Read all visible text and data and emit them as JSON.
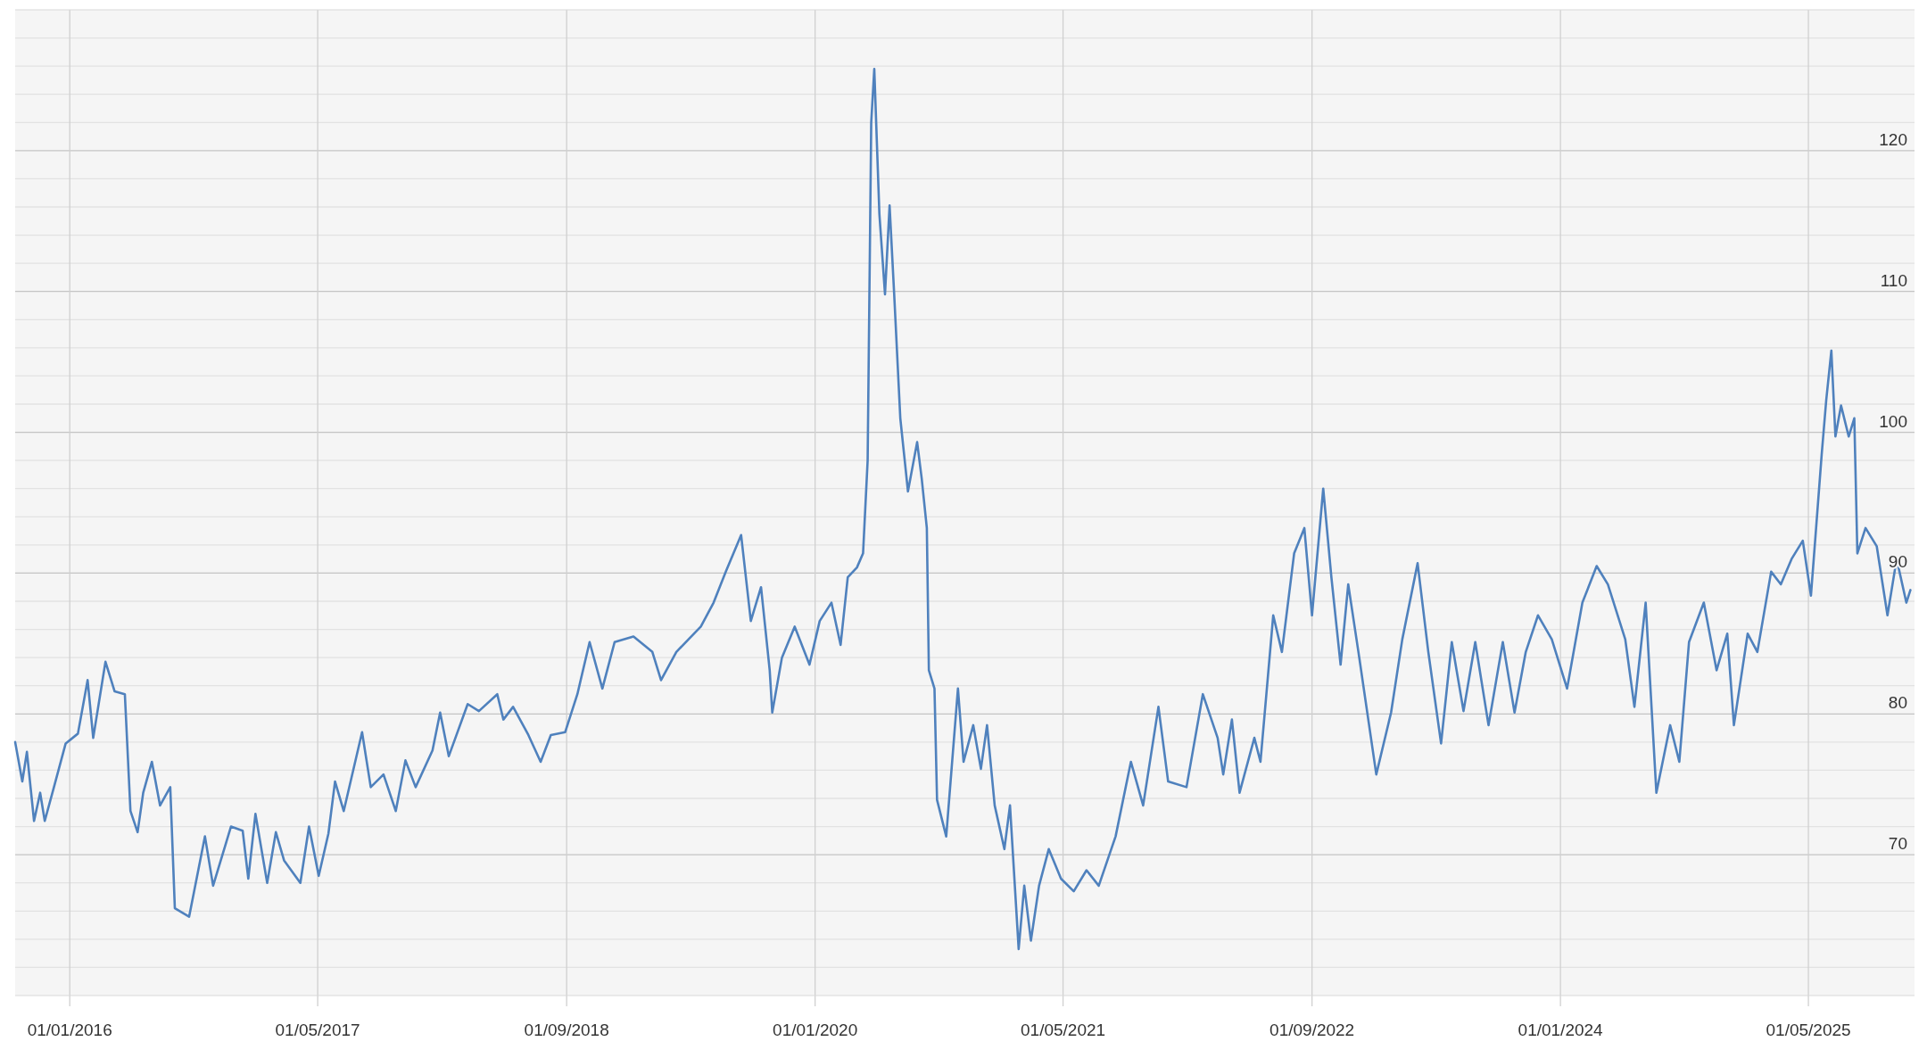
{
  "chart_data": {
    "type": "line",
    "grid": true,
    "marker": "none",
    "line_style": "solid",
    "xlim": [
      "2015-09-16",
      "2025-11-25"
    ],
    "xticks": [
      {
        "value": "2016-01-01",
        "label": "01/01/2016"
      },
      {
        "value": "2017-05-01",
        "label": "01/05/2017"
      },
      {
        "value": "2018-09-01",
        "label": "01/09/2018"
      },
      {
        "value": "2020-01-01",
        "label": "01/01/2020"
      },
      {
        "value": "2021-05-01",
        "label": "01/05/2021"
      },
      {
        "value": "2022-09-01",
        "label": "01/09/2022"
      },
      {
        "value": "2024-01-01",
        "label": "01/01/2024"
      },
      {
        "value": "2025-05-01",
        "label": "01/05/2025"
      }
    ],
    "ylim": [
      60,
      130
    ],
    "yticks": [
      {
        "value": 62,
        "label": null
      },
      {
        "value": 64,
        "label": null
      },
      {
        "value": 66,
        "label": null
      },
      {
        "value": 68,
        "label": null
      },
      70,
      {
        "value": 72,
        "label": null
      },
      {
        "value": 74,
        "label": null
      },
      {
        "value": 76,
        "label": null
      },
      {
        "value": 78,
        "label": null
      },
      80,
      {
        "value": 82,
        "label": null
      },
      {
        "value": 84,
        "label": null
      },
      {
        "value": 86,
        "label": null
      },
      {
        "value": 88,
        "label": null
      },
      90,
      {
        "value": 92,
        "label": null
      },
      {
        "value": 94,
        "label": null
      },
      {
        "value": 96,
        "label": null
      },
      {
        "value": 98,
        "label": null
      },
      100,
      {
        "value": 102,
        "label": null
      },
      {
        "value": 104,
        "label": null
      },
      {
        "value": 106,
        "label": null
      },
      {
        "value": 108,
        "label": null
      },
      110,
      {
        "value": 112,
        "label": null
      },
      {
        "value": 114,
        "label": null
      },
      {
        "value": 116,
        "label": null
      },
      {
        "value": 118,
        "label": null
      },
      120,
      {
        "value": 122,
        "label": null
      },
      {
        "value": 124,
        "label": null
      },
      {
        "value": 126,
        "label": null
      },
      {
        "value": 128,
        "label": null
      }
    ],
    "x": [
      "2015-09-16",
      "2015-09-30",
      "2015-10-09",
      "2015-10-23",
      "2015-11-04",
      "2015-11-13",
      "2015-12-01",
      "2015-12-24",
      "2016-01-17",
      "2016-02-05",
      "2016-02-16",
      "2016-03-11",
      "2016-03-29",
      "2016-04-18",
      "2016-04-29",
      "2016-05-13",
      "2016-05-24",
      "2016-06-10",
      "2016-06-26",
      "2016-07-16",
      "2016-07-25",
      "2016-08-22",
      "2016-09-22",
      "2016-10-08",
      "2016-11-12",
      "2016-12-05",
      "2016-12-16",
      "2016-12-30",
      "2017-01-22",
      "2017-02-08",
      "2017-02-24",
      "2017-03-28",
      "2017-04-14",
      "2017-05-03",
      "2017-05-22",
      "2017-06-04",
      "2017-06-21",
      "2017-07-27",
      "2017-08-13",
      "2017-09-07",
      "2017-10-01",
      "2017-10-20",
      "2017-11-09",
      "2017-12-12",
      "2017-12-27",
      "2018-01-13",
      "2018-02-19",
      "2018-03-13",
      "2018-04-18",
      "2018-04-30",
      "2018-05-19",
      "2018-06-18",
      "2018-07-12",
      "2018-08-01",
      "2018-08-29",
      "2018-09-22",
      "2018-10-16",
      "2018-11-10",
      "2018-12-04",
      "2019-01-10",
      "2019-02-16",
      "2019-03-05",
      "2019-04-04",
      "2019-04-28",
      "2019-05-22",
      "2019-06-16",
      "2019-07-10",
      "2019-08-09",
      "2019-08-28",
      "2019-09-17",
      "2019-10-04",
      "2019-10-09",
      "2019-10-28",
      "2019-11-22",
      "2019-12-21",
      "2020-01-10",
      "2020-02-02",
      "2020-02-20",
      "2020-03-05",
      "2020-03-23",
      "2020-04-04",
      "2020-04-13",
      "2020-04-20",
      "2020-04-26",
      "2020-05-06",
      "2020-05-17",
      "2020-05-26",
      "2020-06-04",
      "2020-06-16",
      "2020-07-01",
      "2020-07-19",
      "2020-07-28",
      "2020-08-07",
      "2020-08-11",
      "2020-08-22",
      "2020-08-27",
      "2020-09-14",
      "2020-10-07",
      "2020-10-18",
      "2020-11-06",
      "2020-11-21",
      "2020-12-03",
      "2020-12-18",
      "2021-01-06",
      "2021-01-17",
      "2021-02-03",
      "2021-02-14",
      "2021-02-27",
      "2021-03-15",
      "2021-04-03",
      "2021-04-27",
      "2021-05-22",
      "2021-06-16",
      "2021-07-10",
      "2021-08-12",
      "2021-09-11",
      "2021-10-05",
      "2021-11-04",
      "2021-11-23",
      "2021-12-29",
      "2022-01-30",
      "2022-02-28",
      "2022-03-11",
      "2022-03-28",
      "2022-04-12",
      "2022-05-11",
      "2022-05-23",
      "2022-06-17",
      "2022-07-04",
      "2022-07-28",
      "2022-08-17",
      "2022-09-01",
      "2022-09-23",
      "2022-10-09",
      "2022-10-27",
      "2022-11-11",
      "2022-12-01",
      "2023-01-05",
      "2023-02-03",
      "2023-02-25",
      "2023-03-27",
      "2023-04-17",
      "2023-05-12",
      "2023-06-02",
      "2023-06-25",
      "2023-07-18",
      "2023-08-13",
      "2023-09-10",
      "2023-10-03",
      "2023-10-25",
      "2023-11-18",
      "2023-12-15",
      "2024-01-14",
      "2024-02-13",
      "2024-03-12",
      "2024-04-03",
      "2024-05-07",
      "2024-05-25",
      "2024-06-16",
      "2024-07-07",
      "2024-08-03",
      "2024-08-21",
      "2024-09-09",
      "2024-10-08",
      "2024-11-02",
      "2024-11-23",
      "2024-12-06",
      "2025-01-02",
      "2025-01-21",
      "2025-02-17",
      "2025-03-08",
      "2025-03-29",
      "2025-04-20",
      "2025-05-06",
      "2025-05-27",
      "2025-06-05",
      "2025-06-15",
      "2025-06-23",
      "2025-07-04",
      "2025-07-19",
      "2025-07-30",
      "2025-08-05",
      "2025-08-21",
      "2025-09-12",
      "2025-10-03",
      "2025-10-21",
      "2025-11-09",
      "2025-11-17"
    ],
    "series": [
      {
        "color": "#4f81bd",
        "values": [
          78.0,
          75.2,
          77.3,
          72.4,
          74.4,
          72.4,
          74.8,
          77.9,
          78.6,
          82.4,
          78.3,
          83.7,
          81.6,
          81.4,
          73.1,
          71.6,
          74.4,
          76.6,
          73.5,
          74.8,
          66.2,
          65.6,
          71.3,
          67.8,
          72.0,
          71.7,
          68.3,
          72.9,
          68.0,
          71.6,
          69.6,
          68.0,
          72.0,
          68.5,
          71.5,
          75.2,
          73.1,
          78.7,
          74.8,
          75.7,
          73.1,
          76.7,
          74.8,
          77.4,
          80.1,
          77.0,
          80.7,
          80.2,
          81.4,
          79.6,
          80.5,
          78.5,
          76.6,
          78.5,
          78.7,
          81.4,
          85.1,
          81.8,
          85.1,
          85.5,
          84.4,
          82.4,
          84.4,
          85.3,
          86.2,
          87.9,
          90.1,
          92.7,
          86.6,
          89.0,
          83.1,
          80.1,
          84.0,
          86.2,
          83.5,
          86.6,
          87.9,
          84.9,
          89.7,
          90.4,
          91.4,
          98.0,
          122.0,
          125.8,
          115.5,
          109.8,
          116.1,
          109.8,
          101.0,
          95.8,
          99.3,
          96.7,
          93.2,
          83.1,
          81.8,
          73.9,
          71.3,
          81.8,
          76.6,
          79.2,
          76.1,
          79.2,
          73.5,
          70.4,
          73.5,
          63.3,
          67.8,
          63.9,
          67.8,
          70.4,
          68.3,
          67.4,
          68.9,
          67.8,
          71.3,
          76.6,
          73.5,
          80.5,
          75.2,
          74.8,
          81.4,
          78.3,
          75.7,
          79.6,
          74.4,
          78.3,
          76.6,
          87.0,
          84.4,
          91.4,
          93.2,
          87.0,
          96.0,
          89.7,
          83.5,
          89.2,
          84.4,
          75.7,
          80.1,
          85.3,
          90.7,
          84.4,
          77.9,
          85.1,
          80.2,
          85.1,
          79.2,
          85.1,
          80.1,
          84.4,
          87.0,
          85.3,
          81.8,
          87.9,
          90.5,
          89.2,
          85.3,
          80.5,
          87.9,
          74.4,
          79.2,
          76.6,
          85.1,
          87.9,
          83.1,
          85.7,
          79.2,
          85.7,
          84.4,
          90.1,
          89.2,
          91.0,
          92.3,
          88.4,
          98.4,
          102.3,
          105.8,
          99.7,
          101.9,
          99.7,
          101.0,
          91.4,
          93.2,
          91.9,
          87.0,
          91.0,
          87.9,
          88.8
        ]
      }
    ]
  }
}
